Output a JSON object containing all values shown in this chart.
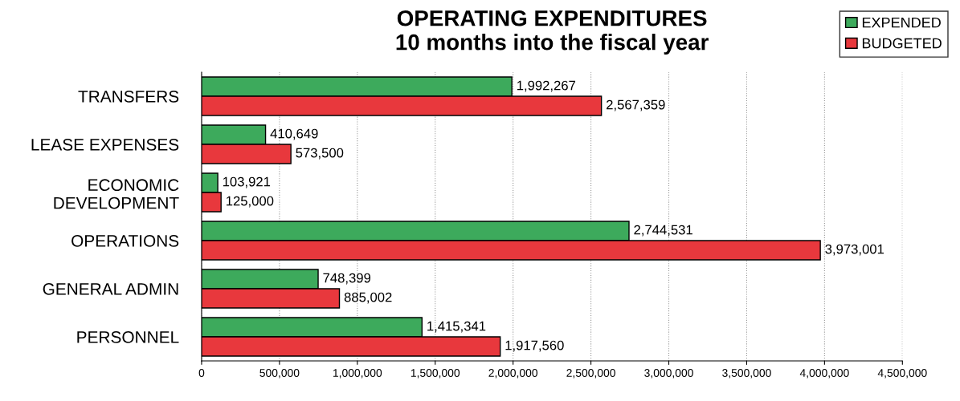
{
  "chart_data": {
    "type": "bar",
    "orientation": "horizontal",
    "title": "OPERATING EXPENDITURES\n10 months into the fiscal year",
    "categories": [
      "TRANSFERS",
      "LEASE EXPENSES",
      "ECONOMIC\nDEVELOPMENT",
      "OPERATIONS",
      "GENERAL ADMIN",
      "PERSONNEL"
    ],
    "series": [
      {
        "name": "EXPENDED",
        "color": "#3daa5c",
        "values": [
          1992267,
          410649,
          103921,
          2744531,
          748399,
          1415341
        ],
        "value_labels": [
          "1,992,267",
          "410,649",
          "103,921",
          "2,744,531",
          "748,399",
          "1,415,341"
        ]
      },
      {
        "name": "BUDGETED",
        "color": "#e8383d",
        "values": [
          2567359,
          573500,
          125000,
          3973001,
          885002,
          1917560
        ],
        "value_labels": [
          "2,567,359",
          "573,500",
          "125,000",
          "3,973,001",
          "885,002",
          "1,917,560"
        ]
      }
    ],
    "xlim": [
      0,
      4500000
    ],
    "xticks": [
      0,
      {
        "value": 500000,
        "label": "500,000"
      },
      {
        "value": 1000000,
        "label": "1,000,000"
      },
      {
        "value": 1500000,
        "label": "1,500,000"
      },
      {
        "value": 2000000,
        "label": "2,000,000"
      },
      {
        "value": 2500000,
        "label": "2,500,000"
      },
      {
        "value": 3000000,
        "label": "3,000,000"
      },
      {
        "value": 3500000,
        "label": "3,500,000"
      },
      {
        "value": 4000000,
        "label": "4,000,000"
      },
      {
        "value": 4500000,
        "label": "4,500,000"
      }
    ],
    "grid": "x",
    "legend": "top right"
  }
}
